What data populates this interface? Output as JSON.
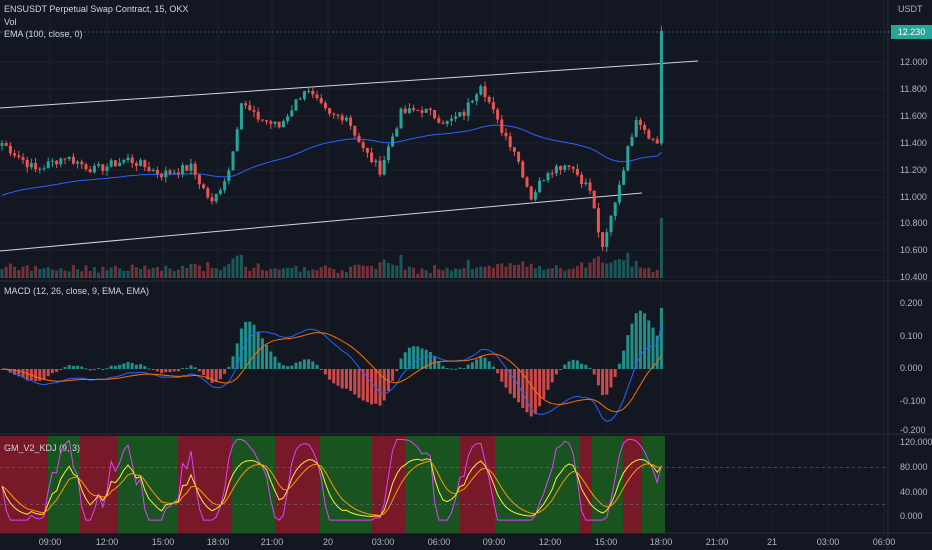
{
  "header": {
    "title": "ENSUSDT Perpetual Swap Contract, 15, OKX",
    "vol_label": "Vol",
    "ema_label": "EMA (100, close, 0)",
    "currency": "USDT"
  },
  "price_tag": "12.230",
  "price_axis": [
    "12.000",
    "11.800",
    "11.600",
    "11.400",
    "11.200",
    "11.000",
    "10.800",
    "10.600",
    "10.400"
  ],
  "macd_label": "MACD (12, 26, close, 9, EMA, EMA)",
  "macd_axis": [
    "0.200",
    "0.100",
    "0.000",
    "-0.100",
    "-0.200"
  ],
  "kdj_label": "GM_V2_KDJ (9, 3)",
  "kdj_axis": [
    "120.000",
    "80.000",
    "40.000",
    "0.000"
  ],
  "time_axis": [
    "09:00",
    "12:00",
    "15:00",
    "18:00",
    "21:00",
    "20",
    "03:00",
    "06:00",
    "09:00",
    "12:00",
    "15:00",
    "18:00",
    "21:00",
    "21",
    "03:00",
    "06:00"
  ],
  "colors": {
    "background": "#131722",
    "up": "#26a69a",
    "down": "#ef5350",
    "ema": "#2962ff",
    "macd_line": "#2962ff",
    "signal_line": "#ff6d00",
    "kdj_bull_zone": "#1b5e20",
    "kdj_bear_zone": "#8b1a2b"
  },
  "chart_data": [
    {
      "type": "candlestick",
      "title": "ENSUSDT Perpetual Swap Contract, 15, OKX",
      "ylim": [
        10.4,
        12.3
      ],
      "last_price": 12.23,
      "key_points": [
        {
          "time": "06:00",
          "close": 11.4
        },
        {
          "time": "09:00",
          "close": 11.05
        },
        {
          "time": "18:00",
          "close": 11.85
        },
        {
          "time": "06:30",
          "close": 11.85
        },
        {
          "time": "08:00",
          "close": 11.55
        },
        {
          "time": "09:30",
          "close": 11.0
        },
        {
          "time": "12:00",
          "close": 11.25
        },
        {
          "time": "13:30",
          "close": 10.6
        },
        {
          "time": "15:00",
          "close": 11.6
        },
        {
          "time": "17:00",
          "close": 11.3
        },
        {
          "time": "18:00",
          "close": 12.23
        }
      ]
    },
    {
      "type": "bar",
      "title": "Vol"
    },
    {
      "type": "line",
      "title": "MACD (12, 26, close, 9, EMA, EMA)",
      "ylim": [
        -0.2,
        0.22
      ]
    },
    {
      "type": "line",
      "title": "GM_V2_KDJ (9, 3)",
      "ylim": [
        -10,
        125
      ]
    }
  ]
}
